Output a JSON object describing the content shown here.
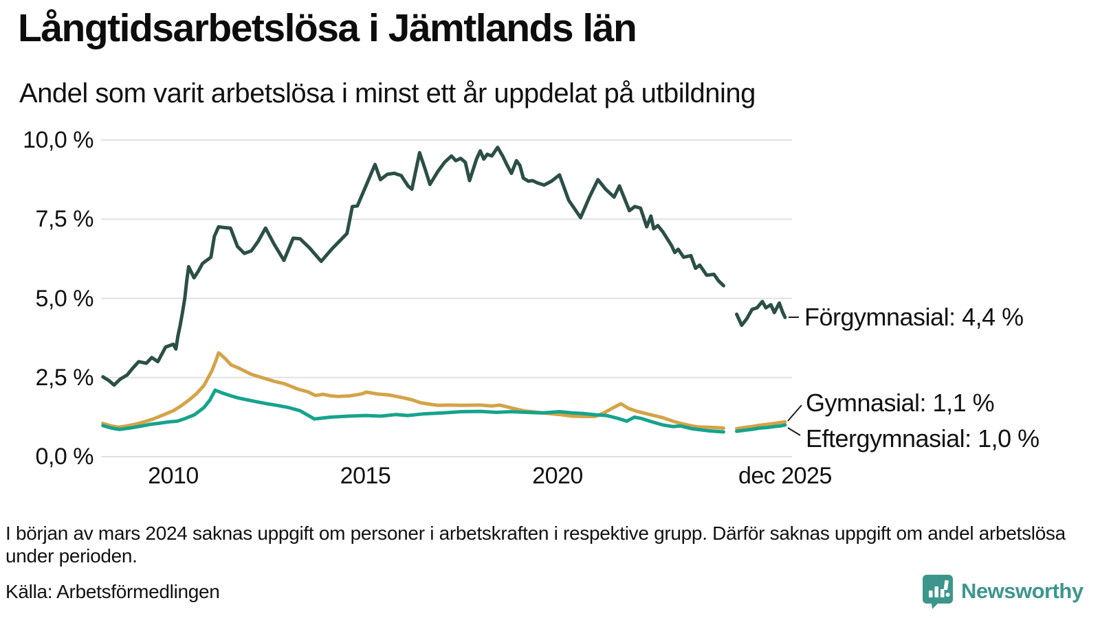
{
  "header": {
    "title": "Långtidsarbetslösa i Jämtlands län",
    "subtitle": "Andel som varit arbetslösa i minst ett år uppdelat på utbildning"
  },
  "footer": {
    "footnote": "I början av mars 2024 saknas uppgift om personer i arbetskraften i respektive grupp. Därför saknas uppgift om andel arbetslösa under perioden.",
    "source": "Källa: Arbetsförmedlingen",
    "logo_text": "Newsworthy",
    "logo_color": "#3d968e",
    "logo_icon": "speech-bubble-bar-chart-icon"
  },
  "chart_data": {
    "type": "line",
    "title": "Långtidsarbetslösa i Jämtlands län",
    "subtitle": "Andel som varit arbetslösa i minst ett år uppdelat på utbildning",
    "ylabel": "",
    "xlabel": "",
    "grid": "horizontal-only",
    "legend_position": "end-of-line-callouts",
    "style": {
      "grid_color": "#e1e1e5",
      "text_color": "#111111",
      "background": "#ffffff"
    },
    "y_axis": {
      "range": [
        0,
        10
      ],
      "unit": "%",
      "ticks": [
        {
          "label": "0,0 %",
          "value": 0
        },
        {
          "label": "2,5 %",
          "value": 2.5
        },
        {
          "label": "5,0 %",
          "value": 5
        },
        {
          "label": "7,5 %",
          "value": 7.5
        },
        {
          "label": "10,0 %",
          "value": 10
        }
      ]
    },
    "x_axis": {
      "range": [
        2008.08,
        2025.92
      ],
      "ticks": [
        {
          "label": "2010",
          "t": 2010
        },
        {
          "label": "2015",
          "t": 2015
        },
        {
          "label": "2020",
          "t": 2020
        },
        {
          "label": "dec 2025",
          "t": 2025.92
        }
      ]
    },
    "data_gap": "mar 2024 – aug 2024",
    "series": [
      {
        "id": "forgymnasial",
        "name": "Förgymnasial",
        "label": "Förgymnasial: 4,4 %",
        "last_value": "4,4 %",
        "color": "#2b4f47",
        "points": [
          [
            2008.17,
            2.52
          ],
          [
            2008.33,
            2.4
          ],
          [
            2008.46,
            2.26
          ],
          [
            2008.62,
            2.45
          ],
          [
            2008.8,
            2.58
          ],
          [
            2008.95,
            2.8
          ],
          [
            2009.1,
            3.0
          ],
          [
            2009.3,
            2.95
          ],
          [
            2009.44,
            3.13
          ],
          [
            2009.6,
            3.0
          ],
          [
            2009.8,
            3.46
          ],
          [
            2010.0,
            3.55
          ],
          [
            2010.07,
            3.4
          ],
          [
            2010.12,
            3.8
          ],
          [
            2010.18,
            4.15
          ],
          [
            2010.24,
            4.55
          ],
          [
            2010.3,
            5.0
          ],
          [
            2010.35,
            5.55
          ],
          [
            2010.4,
            6.0
          ],
          [
            2010.54,
            5.65
          ],
          [
            2010.65,
            5.85
          ],
          [
            2010.76,
            6.1
          ],
          [
            2010.98,
            6.3
          ],
          [
            2011.07,
            6.96
          ],
          [
            2011.18,
            7.26
          ],
          [
            2011.3,
            7.24
          ],
          [
            2011.49,
            7.22
          ],
          [
            2011.67,
            6.64
          ],
          [
            2011.85,
            6.42
          ],
          [
            2012.03,
            6.5
          ],
          [
            2012.21,
            6.8
          ],
          [
            2012.4,
            7.22
          ],
          [
            2012.63,
            6.7
          ],
          [
            2012.88,
            6.2
          ],
          [
            2013.12,
            6.9
          ],
          [
            2013.3,
            6.88
          ],
          [
            2013.54,
            6.6
          ],
          [
            2013.85,
            6.17
          ],
          [
            2014.12,
            6.55
          ],
          [
            2014.52,
            7.05
          ],
          [
            2014.66,
            7.9
          ],
          [
            2014.79,
            7.92
          ],
          [
            2015.03,
            8.6
          ],
          [
            2015.25,
            9.23
          ],
          [
            2015.39,
            8.75
          ],
          [
            2015.57,
            8.92
          ],
          [
            2015.75,
            8.95
          ],
          [
            2015.93,
            8.88
          ],
          [
            2016.11,
            8.55
          ],
          [
            2016.21,
            8.45
          ],
          [
            2016.41,
            9.6
          ],
          [
            2016.55,
            9.1
          ],
          [
            2016.68,
            8.6
          ],
          [
            2016.88,
            9.0
          ],
          [
            2017.06,
            9.3
          ],
          [
            2017.24,
            9.5
          ],
          [
            2017.35,
            9.35
          ],
          [
            2017.48,
            9.42
          ],
          [
            2017.6,
            9.3
          ],
          [
            2017.71,
            8.72
          ],
          [
            2017.89,
            9.4
          ],
          [
            2017.99,
            9.66
          ],
          [
            2018.08,
            9.4
          ],
          [
            2018.17,
            9.55
          ],
          [
            2018.29,
            9.5
          ],
          [
            2018.44,
            9.77
          ],
          [
            2018.57,
            9.5
          ],
          [
            2018.69,
            9.2
          ],
          [
            2018.8,
            8.95
          ],
          [
            2018.93,
            9.35
          ],
          [
            2019.02,
            9.2
          ],
          [
            2019.11,
            8.8
          ],
          [
            2019.24,
            8.7
          ],
          [
            2019.35,
            8.72
          ],
          [
            2019.47,
            8.65
          ],
          [
            2019.65,
            8.58
          ],
          [
            2019.84,
            8.7
          ],
          [
            2020.05,
            8.9
          ],
          [
            2020.29,
            8.1
          ],
          [
            2020.6,
            7.55
          ],
          [
            2020.83,
            8.2
          ],
          [
            2021.05,
            8.75
          ],
          [
            2021.25,
            8.45
          ],
          [
            2021.47,
            8.2
          ],
          [
            2021.61,
            8.55
          ],
          [
            2021.87,
            7.77
          ],
          [
            2022.01,
            7.9
          ],
          [
            2022.16,
            7.85
          ],
          [
            2022.32,
            7.26
          ],
          [
            2022.43,
            7.6
          ],
          [
            2022.5,
            7.2
          ],
          [
            2022.61,
            7.3
          ],
          [
            2022.74,
            7.1
          ],
          [
            2022.96,
            6.68
          ],
          [
            2023.05,
            6.45
          ],
          [
            2023.14,
            6.55
          ],
          [
            2023.28,
            6.3
          ],
          [
            2023.47,
            6.35
          ],
          [
            2023.59,
            5.95
          ],
          [
            2023.7,
            6.05
          ],
          [
            2023.88,
            5.73
          ],
          [
            2024.07,
            5.76
          ],
          [
            2024.19,
            5.55
          ],
          [
            2024.32,
            5.4
          ],
          null,
          [
            2024.66,
            4.5
          ],
          [
            2024.79,
            4.15
          ],
          [
            2024.92,
            4.35
          ],
          [
            2025.06,
            4.65
          ],
          [
            2025.19,
            4.7
          ],
          [
            2025.33,
            4.9
          ],
          [
            2025.42,
            4.7
          ],
          [
            2025.55,
            4.8
          ],
          [
            2025.64,
            4.55
          ],
          [
            2025.77,
            4.85
          ],
          [
            2025.86,
            4.55
          ],
          [
            2025.92,
            4.4
          ]
        ]
      },
      {
        "id": "gymnasial",
        "name": "Gymnasial",
        "label": "Gymnasial: 1,1 %",
        "last_value": "1,1 %",
        "color": "#d4a348",
        "points": [
          [
            2008.17,
            1.05
          ],
          [
            2008.35,
            0.98
          ],
          [
            2008.55,
            0.93
          ],
          [
            2008.75,
            0.96
          ],
          [
            2009.0,
            1.02
          ],
          [
            2009.25,
            1.1
          ],
          [
            2009.5,
            1.2
          ],
          [
            2009.75,
            1.32
          ],
          [
            2010.0,
            1.45
          ],
          [
            2010.2,
            1.6
          ],
          [
            2010.4,
            1.78
          ],
          [
            2010.6,
            1.98
          ],
          [
            2010.8,
            2.25
          ],
          [
            2011.0,
            2.7
          ],
          [
            2011.1,
            3.0
          ],
          [
            2011.18,
            3.28
          ],
          [
            2011.35,
            3.1
          ],
          [
            2011.5,
            2.9
          ],
          [
            2011.7,
            2.8
          ],
          [
            2011.9,
            2.68
          ],
          [
            2012.03,
            2.6
          ],
          [
            2012.3,
            2.5
          ],
          [
            2012.63,
            2.38
          ],
          [
            2012.9,
            2.3
          ],
          [
            2013.25,
            2.13
          ],
          [
            2013.5,
            2.05
          ],
          [
            2013.7,
            1.93
          ],
          [
            2013.9,
            1.97
          ],
          [
            2014.1,
            1.92
          ],
          [
            2014.3,
            1.9
          ],
          [
            2014.6,
            1.92
          ],
          [
            2014.9,
            1.98
          ],
          [
            2015.03,
            2.04
          ],
          [
            2015.3,
            1.98
          ],
          [
            2015.6,
            1.95
          ],
          [
            2015.9,
            1.88
          ],
          [
            2016.2,
            1.8
          ],
          [
            2016.44,
            1.7
          ],
          [
            2016.7,
            1.65
          ],
          [
            2016.9,
            1.62
          ],
          [
            2017.2,
            1.63
          ],
          [
            2017.5,
            1.62
          ],
          [
            2017.97,
            1.63
          ],
          [
            2018.3,
            1.6
          ],
          [
            2018.5,
            1.63
          ],
          [
            2018.66,
            1.58
          ],
          [
            2019.0,
            1.48
          ],
          [
            2019.16,
            1.44
          ],
          [
            2019.5,
            1.4
          ],
          [
            2019.78,
            1.36
          ],
          [
            2020.05,
            1.33
          ],
          [
            2020.38,
            1.28
          ],
          [
            2020.7,
            1.27
          ],
          [
            2020.98,
            1.27
          ],
          [
            2021.2,
            1.38
          ],
          [
            2021.47,
            1.56
          ],
          [
            2021.65,
            1.67
          ],
          [
            2021.85,
            1.52
          ],
          [
            2022.07,
            1.43
          ],
          [
            2022.4,
            1.33
          ],
          [
            2022.74,
            1.23
          ],
          [
            2023.0,
            1.12
          ],
          [
            2023.2,
            1.05
          ],
          [
            2023.45,
            0.98
          ],
          [
            2023.65,
            0.94
          ],
          [
            2023.9,
            0.93
          ],
          [
            2024.1,
            0.92
          ],
          [
            2024.32,
            0.9
          ],
          null,
          [
            2024.66,
            0.88
          ],
          [
            2024.85,
            0.92
          ],
          [
            2025.05,
            0.95
          ],
          [
            2025.25,
            0.99
          ],
          [
            2025.45,
            1.02
          ],
          [
            2025.65,
            1.05
          ],
          [
            2025.8,
            1.08
          ],
          [
            2025.92,
            1.1
          ]
        ]
      },
      {
        "id": "eftergymnasial",
        "name": "Eftergymnasial",
        "label": "Eftergymnasial: 1,0 %",
        "last_value": "1,0 %",
        "color": "#16a38c",
        "points": [
          [
            2008.17,
            0.98
          ],
          [
            2008.4,
            0.9
          ],
          [
            2008.6,
            0.86
          ],
          [
            2008.85,
            0.9
          ],
          [
            2009.1,
            0.95
          ],
          [
            2009.4,
            1.02
          ],
          [
            2009.6,
            1.05
          ],
          [
            2009.9,
            1.1
          ],
          [
            2010.1,
            1.12
          ],
          [
            2010.3,
            1.2
          ],
          [
            2010.55,
            1.32
          ],
          [
            2010.8,
            1.55
          ],
          [
            2010.95,
            1.78
          ],
          [
            2011.09,
            2.1
          ],
          [
            2011.3,
            2.0
          ],
          [
            2011.5,
            1.92
          ],
          [
            2011.7,
            1.85
          ],
          [
            2011.9,
            1.8
          ],
          [
            2012.1,
            1.75
          ],
          [
            2012.4,
            1.68
          ],
          [
            2012.7,
            1.62
          ],
          [
            2013.0,
            1.55
          ],
          [
            2013.3,
            1.45
          ],
          [
            2013.67,
            1.19
          ],
          [
            2014.12,
            1.25
          ],
          [
            2014.57,
            1.28
          ],
          [
            2015.0,
            1.3
          ],
          [
            2015.4,
            1.28
          ],
          [
            2015.8,
            1.33
          ],
          [
            2016.1,
            1.3
          ],
          [
            2016.5,
            1.35
          ],
          [
            2017.0,
            1.38
          ],
          [
            2017.5,
            1.42
          ],
          [
            2018.0,
            1.43
          ],
          [
            2018.4,
            1.4
          ],
          [
            2018.8,
            1.42
          ],
          [
            2019.2,
            1.4
          ],
          [
            2019.6,
            1.38
          ],
          [
            2020.05,
            1.42
          ],
          [
            2020.4,
            1.38
          ],
          [
            2020.67,
            1.36
          ],
          [
            2021.0,
            1.32
          ],
          [
            2021.27,
            1.3
          ],
          [
            2021.6,
            1.2
          ],
          [
            2021.8,
            1.12
          ],
          [
            2022.0,
            1.25
          ],
          [
            2022.2,
            1.2
          ],
          [
            2022.4,
            1.12
          ],
          [
            2022.74,
            1.0
          ],
          [
            2023.0,
            0.95
          ],
          [
            2023.2,
            0.97
          ],
          [
            2023.5,
            0.88
          ],
          [
            2023.7,
            0.85
          ],
          [
            2023.9,
            0.82
          ],
          [
            2024.1,
            0.8
          ],
          [
            2024.32,
            0.78
          ],
          null,
          [
            2024.66,
            0.8
          ],
          [
            2024.85,
            0.83
          ],
          [
            2025.05,
            0.86
          ],
          [
            2025.25,
            0.9
          ],
          [
            2025.45,
            0.92
          ],
          [
            2025.65,
            0.95
          ],
          [
            2025.8,
            0.97
          ],
          [
            2025.92,
            1.0
          ]
        ]
      }
    ]
  }
}
